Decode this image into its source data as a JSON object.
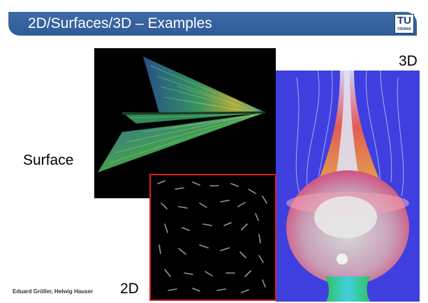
{
  "slide": {
    "title": "2D/Surfaces/3D – Examples",
    "logo": {
      "text": "TU",
      "subtext": "VIENNA"
    },
    "labels": {
      "surface": "Surface",
      "three_d": "3D",
      "two_d": "2D"
    },
    "footer": "Eduard Gröller, Helwig Hauser"
  },
  "colors": {
    "title_bar": "#3465a4",
    "frame_2d": "#d82020",
    "bg_3d": "#3f3fe0"
  },
  "icons": [
    "tu-vienna-logo"
  ]
}
